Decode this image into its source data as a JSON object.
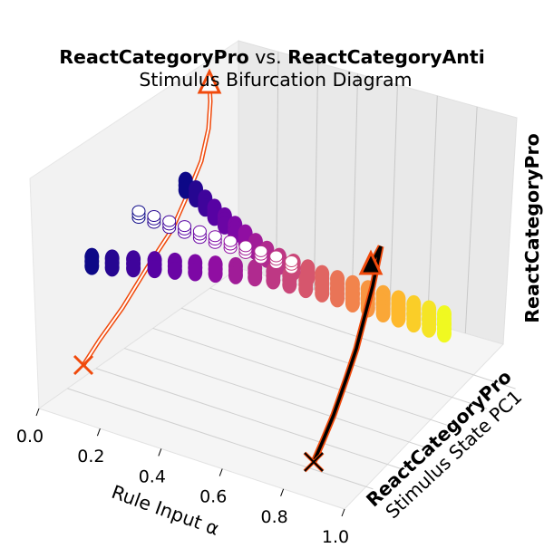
{
  "chart_data": {
    "type": "scatter",
    "projection": "3d",
    "title": {
      "bold_left": "ReactCategoryPro",
      "connector": " vs. ",
      "bold_right": "ReactCategoryAnti",
      "subtitle": "Stimulus Bifurcation Diagram"
    },
    "xlabel": "Rule Input α",
    "xticks": [
      "0.0",
      "0.2",
      "0.4",
      "0.6",
      "0.8",
      "1.0"
    ],
    "ylabel": {
      "bold": "ReactCategoryPro",
      "plain": "Stimulus State PC1"
    },
    "zlabel": "ReactCategoryPro",
    "xlim": [
      0.0,
      1.0
    ],
    "ylim": [
      -1.0,
      1.0
    ],
    "zlim": [
      -1.0,
      1.0
    ],
    "colormap": "plasma",
    "grid": true,
    "series": [
      {
        "marker": "filled-circle",
        "x": [
          0.0,
          0.05,
          0.1,
          0.15,
          0.2,
          0.25,
          0.3,
          0.35,
          0.4,
          0.45,
          0.5,
          0.55,
          0.6,
          0.65,
          0.7,
          0.75,
          0.8,
          0.85,
          0.9,
          0.95,
          1.0
        ],
        "branch_upper": [
          0.47,
          0.42,
          0.36,
          0.3,
          0.25,
          0.2,
          0.15,
          0.1,
          0.06,
          0.03,
          0.02,
          0.01,
          0.0,
          0.0,
          0.0,
          0.0,
          0.0,
          0.0,
          0.0,
          0.0,
          0.0
        ],
        "branch_lower": [
          -0.47,
          -0.42,
          -0.36,
          -0.3,
          -0.25,
          -0.2,
          -0.15,
          -0.1,
          -0.06,
          -0.03,
          -0.02,
          -0.01,
          0.0,
          0.0,
          0.0,
          0.0,
          0.0,
          0.0,
          0.0,
          0.0,
          0.0
        ]
      },
      {
        "marker": "open-circle",
        "x": [
          0.0,
          0.05,
          0.1,
          0.15,
          0.2,
          0.25,
          0.3,
          0.35,
          0.4,
          0.45,
          0.5
        ],
        "values": [
          0.0,
          0.0,
          0.0,
          0.0,
          0.0,
          0.0,
          0.0,
          0.0,
          0.0,
          0.0,
          0.0
        ]
      }
    ],
    "trajectories": [
      {
        "alpha": 0.0,
        "color": "#f04a0c",
        "style": "outline",
        "start_marker": "x",
        "end_marker": "triangle"
      },
      {
        "alpha": 1.0,
        "color": "#000000",
        "edge": "#f04a0c",
        "style": "solid",
        "start_marker": "x",
        "end_marker": "triangle"
      }
    ]
  }
}
